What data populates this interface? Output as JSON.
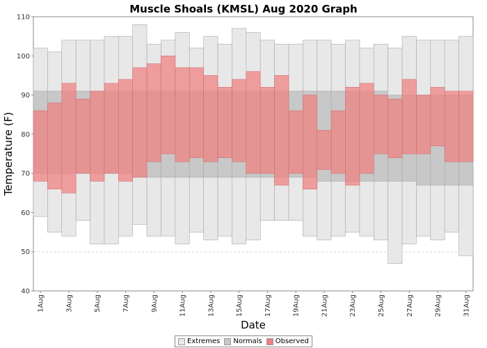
{
  "chart_data": {
    "type": "bar",
    "title": "Muscle Shoals (KMSL) Aug 2020 Graph",
    "xlabel": "Date",
    "ylabel": "Temperature (F)",
    "ylim": [
      40,
      110
    ],
    "yticks": [
      40,
      50,
      60,
      70,
      80,
      90,
      100,
      110
    ],
    "grid": true,
    "legend_position": "bottom",
    "days": [
      1,
      2,
      3,
      4,
      5,
      6,
      7,
      8,
      9,
      10,
      11,
      12,
      13,
      14,
      15,
      16,
      17,
      18,
      19,
      20,
      21,
      22,
      23,
      24,
      25,
      26,
      27,
      28,
      29,
      30,
      31
    ],
    "x_tick_labels": [
      "1Aug",
      "3Aug",
      "5Aug",
      "7Aug",
      "9Aug",
      "11Aug",
      "13Aug",
      "15Aug",
      "17Aug",
      "19Aug",
      "21Aug",
      "23Aug",
      "25Aug",
      "27Aug",
      "29Aug",
      "31Aug"
    ],
    "series": [
      {
        "name": "Extremes",
        "color": "#e8e8e8",
        "high": [
          102,
          101,
          104,
          104,
          104,
          105,
          105,
          108,
          103,
          104,
          106,
          102,
          105,
          103,
          107,
          106,
          104,
          103,
          103,
          104,
          104,
          103,
          104,
          102,
          103,
          102,
          105,
          104,
          104,
          104,
          105
        ],
        "low": [
          59,
          55,
          54,
          58,
          52,
          52,
          54,
          57,
          54,
          54,
          52,
          55,
          53,
          54,
          52,
          53,
          58,
          58,
          58,
          54,
          53,
          54,
          55,
          54,
          53,
          47,
          52,
          54,
          53,
          55,
          49
        ]
      },
      {
        "name": "Normals",
        "color": "#c8c8c8",
        "high": [
          91,
          91,
          91,
          91,
          91,
          91,
          91,
          91,
          91,
          91,
          91,
          91,
          91,
          91,
          91,
          91,
          91,
          91,
          91,
          91,
          91,
          91,
          91,
          91,
          91,
          90,
          90,
          90,
          90,
          90,
          90
        ],
        "low": [
          70,
          70,
          70,
          70,
          70,
          70,
          70,
          69,
          69,
          69,
          69,
          69,
          69,
          69,
          69,
          69,
          69,
          69,
          69,
          69,
          68,
          68,
          68,
          68,
          68,
          68,
          68,
          67,
          67,
          67,
          67
        ]
      },
      {
        "name": "Observed",
        "color": "#f08080",
        "high": [
          86,
          88,
          93,
          89,
          91,
          93,
          94,
          97,
          98,
          100,
          97,
          97,
          95,
          92,
          94,
          96,
          92,
          95,
          86,
          90,
          81,
          86,
          92,
          93,
          90,
          89,
          94,
          90,
          92,
          91,
          91
        ],
        "low": [
          68,
          66,
          65,
          70,
          68,
          70,
          68,
          69,
          73,
          75,
          73,
          74,
          73,
          74,
          73,
          70,
          70,
          67,
          70,
          66,
          71,
          70,
          67,
          70,
          75,
          74,
          75,
          75,
          77,
          73,
          73
        ]
      }
    ]
  }
}
